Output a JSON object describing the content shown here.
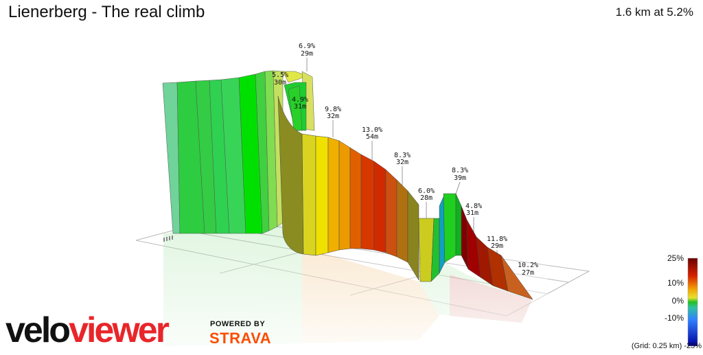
{
  "header": {
    "title": "Lienerberg - The real climb",
    "summary": "1.6 km at 5.2%"
  },
  "annotations": [
    {
      "pct": "6.9%",
      "len": "29m"
    },
    {
      "pct": "5.5%",
      "len": "30m"
    },
    {
      "pct": "4.9%",
      "len": "31m"
    },
    {
      "pct": "9.8%",
      "len": "32m"
    },
    {
      "pct": "13.0%",
      "len": "54m"
    },
    {
      "pct": "8.3%",
      "len": "32m"
    },
    {
      "pct": "6.0%",
      "len": "28m"
    },
    {
      "pct": "8.3%",
      "len": "39m"
    },
    {
      "pct": "4.8%",
      "len": "31m"
    },
    {
      "pct": "11.8%",
      "len": "29m"
    },
    {
      "pct": "10.2%",
      "len": "27m"
    }
  ],
  "legend": {
    "labels": [
      "25%",
      "10%",
      "0%",
      "-10%",
      "-25%"
    ],
    "grid_note": "(Grid: 0.25 km)"
  },
  "branding": {
    "logo": "veloviewer",
    "powered_by": "POWERED BY",
    "strava": "STRAVA"
  },
  "colors": {
    "steep": "#8b0000",
    "hard": "#d63800",
    "moderate": "#f0a000",
    "easy": "#e8e020",
    "flat": "#10c810",
    "descent": "#1a3cff",
    "strava": "#fc4c02"
  }
}
